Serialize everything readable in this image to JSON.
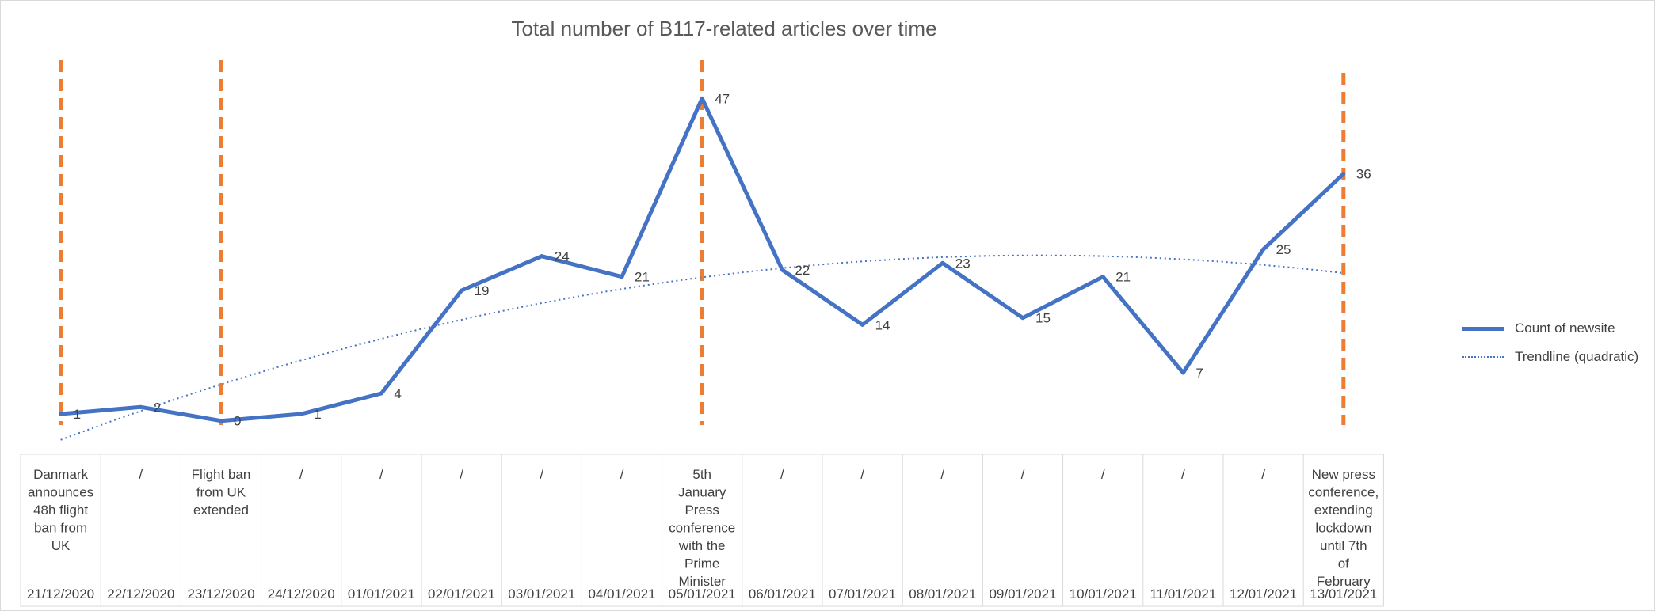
{
  "chart_data": {
    "type": "line",
    "title": "Total number of B117-related articles over time",
    "categories": [
      "21/12/2020",
      "22/12/2020",
      "23/12/2020",
      "24/12/2020",
      "01/01/2021",
      "02/01/2021",
      "03/01/2021",
      "04/01/2021",
      "05/01/2021",
      "06/01/2021",
      "07/01/2021",
      "08/01/2021",
      "09/01/2021",
      "10/01/2021",
      "11/01/2021",
      "12/01/2021",
      "13/01/2021"
    ],
    "annotations": [
      "Danmark announces 48h flight ban from UK",
      "/",
      "Flight ban from UK extended",
      "/",
      "/",
      "/",
      "/",
      "/",
      "5th January Press conference with the Prime Minister",
      "/",
      "/",
      "/",
      "/",
      "/",
      "/",
      "/",
      "New press conference, extending lockdown until 7th of February"
    ],
    "series": [
      {
        "name": "Count of newsite",
        "values": [
          1,
          2,
          0,
          1,
          4,
          19,
          24,
          21,
          47,
          22,
          14,
          23,
          15,
          21,
          7,
          25,
          36
        ],
        "color": "#4472C4"
      }
    ],
    "trendline": {
      "name": "Trendline (quadratic)",
      "type": "quadratic",
      "color": "#4472C4"
    },
    "event_markers": {
      "category_indices": [
        0,
        2,
        8,
        16
      ],
      "color": "#ED7D31",
      "style": "dashed"
    },
    "ylim": [
      -2,
      52
    ],
    "grid": false,
    "legend_position": "right",
    "xlabel": "",
    "ylabel": ""
  }
}
